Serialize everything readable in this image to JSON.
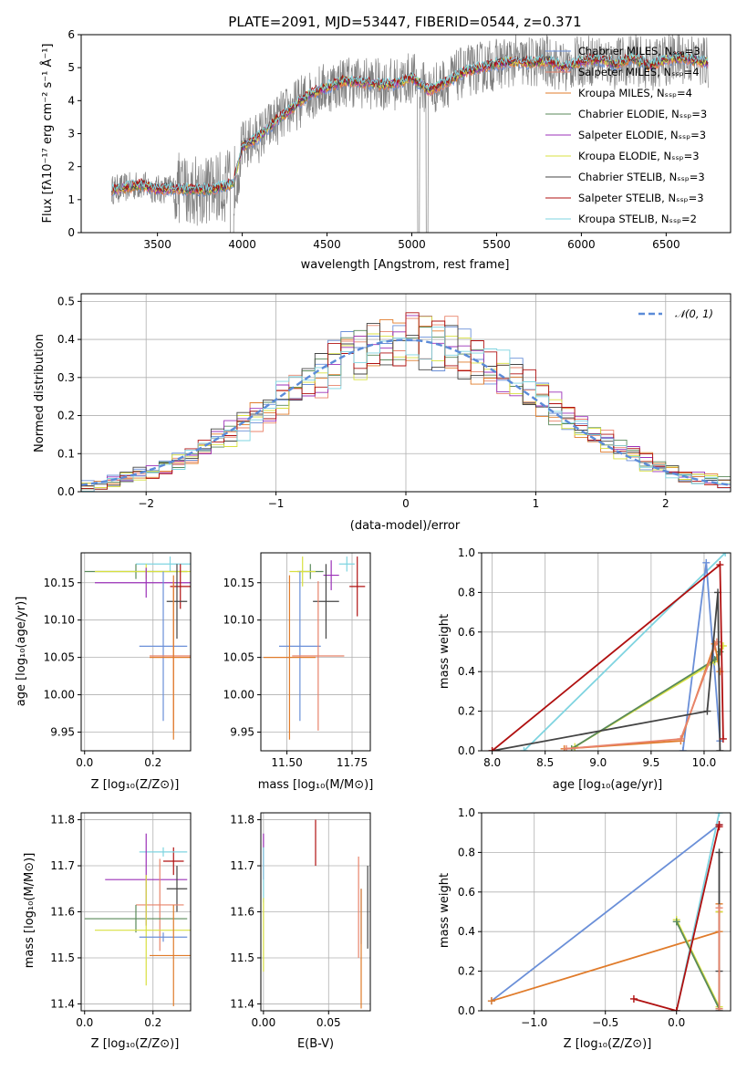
{
  "chart_data": [
    {
      "id": "spectrum",
      "type": "line",
      "title": "PLATE=2091, MJD=53447, FIBERID=0544, z=0.371",
      "xlabel": "wavelength [Angstrom, rest frame]",
      "ylabel": "Flux [fλ10⁻¹⁷ erg cm⁻² s⁻¹ Å⁻¹]",
      "xlim": [
        3050,
        6880
      ],
      "ylim": [
        0,
        6
      ],
      "xticks": [
        3500,
        4000,
        4500,
        5000,
        5500,
        6000,
        6500
      ],
      "yticks": [
        0,
        1,
        2,
        3,
        4,
        5,
        6
      ],
      "grid": false,
      "legend_position": "top-right",
      "legend": [
        {
          "label": "Chabrier MILES, Nₛₛₚ=3",
          "color": "#6a8fd8"
        },
        {
          "label": "Salpeter MILES, Nₛₛₚ=4",
          "color": "#e8836b"
        },
        {
          "label": "Kroupa MILES, Nₛₛₚ=4",
          "color": "#e07b2a"
        },
        {
          "label": "Chabrier ELODIE, Nₛₛₚ=3",
          "color": "#5a8a5a"
        },
        {
          "label": "Salpeter ELODIE, Nₛₛₚ=3",
          "color": "#9b30b8"
        },
        {
          "label": "Kroupa ELODIE, Nₛₛₚ=3",
          "color": "#d8e040"
        },
        {
          "label": "Chabrier STELIB, Nₛₛₚ=3",
          "color": "#444444"
        },
        {
          "label": "Salpeter STELIB, Nₛₛₚ=3",
          "color": "#b01010"
        },
        {
          "label": "Kroupa STELIB, Nₛₛₚ=2",
          "color": "#7fd4e0"
        }
      ],
      "model_curve": {
        "x": [
          3230,
          3300,
          3400,
          3500,
          3600,
          3700,
          3800,
          3900,
          3950,
          4000,
          4100,
          4200,
          4300,
          4400,
          4500,
          4600,
          4700,
          4800,
          4900,
          5000,
          5100,
          5200,
          5300,
          5400,
          5500,
          5600,
          5700,
          5800,
          5900,
          6000,
          6100,
          6200,
          6300,
          6400,
          6500,
          6600,
          6700,
          6750
        ],
        "y": [
          1.3,
          1.35,
          1.45,
          1.3,
          1.35,
          1.3,
          1.3,
          1.4,
          1.5,
          2.6,
          2.9,
          3.4,
          3.8,
          4.2,
          4.4,
          4.6,
          4.55,
          4.5,
          4.5,
          4.7,
          4.3,
          4.55,
          4.85,
          5.0,
          5.1,
          5.2,
          5.15,
          5.2,
          5.0,
          5.2,
          5.25,
          5.1,
          5.3,
          5.05,
          5.25,
          5.3,
          5.2,
          5.15
        ]
      }
    },
    {
      "id": "residuals",
      "type": "line",
      "xlabel": "(data-model)/error",
      "ylabel": "Normed distribution",
      "xlim": [
        -2.5,
        2.5
      ],
      "ylim": [
        0,
        0.52
      ],
      "xticks": [
        -2,
        -1,
        0,
        1,
        2
      ],
      "yticks": [
        0.0,
        0.1,
        0.2,
        0.3,
        0.4,
        0.5
      ],
      "grid": true,
      "legend_position": "top-right",
      "legend": [
        {
          "label": "𝒩(0, 1)",
          "color": "#5b8bd8",
          "style": "dashed"
        }
      ],
      "gaussian": {
        "mu": 0,
        "sigma": 1
      }
    },
    {
      "id": "age-vs-z",
      "type": "scatter",
      "xlabel": "Z [log₁₀(Z/Z⊙)]",
      "ylabel": "age  [log₁₀(age/yr)]",
      "xlim": [
        -0.01,
        0.31
      ],
      "ylim": [
        9.925,
        10.19
      ],
      "xticks": [
        0.0,
        0.2
      ],
      "yticks": [
        9.95,
        10.0,
        10.05,
        10.1,
        10.15
      ],
      "grid": true,
      "points": [
        {
          "x": 0.25,
          "y": 10.175,
          "xerr": 0.1,
          "yerr": 0.01,
          "color": "#7fd4e0"
        },
        {
          "x": 0.15,
          "y": 10.165,
          "xerr": 0.15,
          "yerr": 0.01,
          "color": "#5a8a5a"
        },
        {
          "x": 0.18,
          "y": 10.165,
          "xerr": 0.15,
          "yerr": 0.01,
          "color": "#d8e040"
        },
        {
          "x": 0.18,
          "y": 10.15,
          "xerr": 0.15,
          "yerr": 0.02,
          "color": "#9b30b8"
        },
        {
          "x": 0.28,
          "y": 10.145,
          "xerr": 0.03,
          "yerr": 0.03,
          "color": "#b01010"
        },
        {
          "x": 0.27,
          "y": 10.125,
          "xerr": 0.03,
          "yerr": 0.05,
          "color": "#444444"
        },
        {
          "x": 0.23,
          "y": 10.065,
          "xerr": 0.07,
          "yerr": 0.1,
          "color": "#6a8fd8"
        },
        {
          "x": 0.26,
          "y": 10.052,
          "xerr": 0.07,
          "yerr": 0.1,
          "color": "#e8836b"
        },
        {
          "x": 0.26,
          "y": 10.05,
          "xerr": 0.07,
          "yerr": 0.11,
          "color": "#e07b2a"
        }
      ]
    },
    {
      "id": "age-vs-mass",
      "type": "scatter",
      "xlabel": "mass [log₁₀(M/M⊙)]",
      "xlim": [
        11.4,
        11.82
      ],
      "ylim": [
        9.925,
        10.19
      ],
      "xticks": [
        11.5,
        11.75
      ],
      "yticks": [
        9.95,
        10.0,
        10.05,
        10.1,
        10.15
      ],
      "grid": true,
      "points": [
        {
          "x": 11.73,
          "y": 10.175,
          "xerr": 0.03,
          "yerr": 0.01,
          "color": "#7fd4e0"
        },
        {
          "x": 11.59,
          "y": 10.165,
          "xerr": 0.05,
          "yerr": 0.01,
          "color": "#5a8a5a"
        },
        {
          "x": 11.56,
          "y": 10.165,
          "xerr": 0.05,
          "yerr": 0.02,
          "color": "#d8e040"
        },
        {
          "x": 11.67,
          "y": 10.16,
          "xerr": 0.03,
          "yerr": 0.02,
          "color": "#9b30b8"
        },
        {
          "x": 11.77,
          "y": 10.145,
          "xerr": 0.03,
          "yerr": 0.04,
          "color": "#b01010"
        },
        {
          "x": 11.65,
          "y": 10.125,
          "xerr": 0.05,
          "yerr": 0.05,
          "color": "#444444"
        },
        {
          "x": 11.55,
          "y": 10.065,
          "xerr": 0.08,
          "yerr": 0.1,
          "color": "#6a8fd8"
        },
        {
          "x": 11.62,
          "y": 10.052,
          "xerr": 0.1,
          "yerr": 0.1,
          "color": "#e8836b"
        },
        {
          "x": 11.51,
          "y": 10.05,
          "xerr": 0.1,
          "yerr": 0.11,
          "color": "#e07b2a"
        }
      ]
    },
    {
      "id": "mass-weight-vs-age",
      "type": "line",
      "xlabel": "age  [log₁₀(age/yr)]",
      "ylabel": "mass weight",
      "xlim": [
        7.9,
        10.25
      ],
      "ylim": [
        0,
        1.0
      ],
      "xticks": [
        8.0,
        8.5,
        9.0,
        9.5,
        10.0
      ],
      "yticks": [
        0.0,
        0.2,
        0.4,
        0.6,
        0.8,
        1.0
      ],
      "grid": true,
      "series": [
        {
          "color": "#7fd4e0",
          "x": [
            8.3,
            10.2
          ],
          "y": [
            0.0,
            1.0
          ]
        },
        {
          "color": "#6a8fd8",
          "x": [
            9.8,
            10.02,
            10.15
          ],
          "y": [
            0.0,
            0.95,
            0.05
          ]
        },
        {
          "color": "#d8e040",
          "x": [
            8.78,
            10.1,
            10.18
          ],
          "y": [
            0.02,
            0.45,
            0.53
          ]
        },
        {
          "color": "#5a8a5a",
          "x": [
            8.75,
            10.1,
            10.15
          ],
          "y": [
            0.01,
            0.46,
            0.5
          ]
        },
        {
          "color": "#e07b2a",
          "x": [
            8.68,
            9.78,
            10.1,
            10.15
          ],
          "y": [
            0.01,
            0.05,
            0.54,
            0.4
          ]
        },
        {
          "color": "#e8836b",
          "x": [
            8.7,
            9.78,
            10.12
          ],
          "y": [
            0.01,
            0.06,
            0.55
          ]
        },
        {
          "color": "#444444",
          "x": [
            8.0,
            10.03,
            10.13,
            10.15
          ],
          "y": [
            0.0,
            0.2,
            0.8,
            0.0
          ]
        },
        {
          "color": "#b01010",
          "x": [
            8.0,
            10.15,
            10.18
          ],
          "y": [
            0.0,
            0.94,
            0.06
          ]
        }
      ]
    },
    {
      "id": "mass-vs-z",
      "type": "scatter",
      "xlabel": "Z [log₁₀(Z/Z⊙)]",
      "ylabel": "mass [log₁₀(M/M⊙)]",
      "xlim": [
        -0.01,
        0.31
      ],
      "ylim": [
        11.385,
        11.815
      ],
      "xticks": [
        0.0,
        0.2
      ],
      "yticks": [
        11.4,
        11.5,
        11.6,
        11.7,
        11.8
      ],
      "grid": true,
      "points": [
        {
          "x": 0.26,
          "y": 11.71,
          "xerr": 0.03,
          "yerr": 0.03,
          "color": "#b01010"
        },
        {
          "x": 0.23,
          "y": 11.73,
          "xerr": 0.07,
          "yerr": 0.01,
          "color": "#7fd4e0"
        },
        {
          "x": 0.18,
          "y": 11.67,
          "xerr": 0.12,
          "yerr": 0.1,
          "color": "#9b30b8"
        },
        {
          "x": 0.27,
          "y": 11.65,
          "xerr": 0.03,
          "yerr": 0.05,
          "color": "#444444"
        },
        {
          "x": 0.22,
          "y": 11.615,
          "xerr": 0.07,
          "yerr": 0.1,
          "color": "#e8836b"
        },
        {
          "x": 0.15,
          "y": 11.585,
          "xerr": 0.15,
          "yerr": 0.03,
          "color": "#5a8a5a"
        },
        {
          "x": 0.18,
          "y": 11.56,
          "xerr": 0.15,
          "yerr": 0.12,
          "color": "#d8e040"
        },
        {
          "x": 0.23,
          "y": 11.545,
          "xerr": 0.07,
          "yerr": 0.01,
          "color": "#6a8fd8"
        },
        {
          "x": 0.26,
          "y": 11.505,
          "xerr": 0.07,
          "yerr": 0.11,
          "color": "#e07b2a"
        }
      ]
    },
    {
      "id": "mass-vs-ebv",
      "type": "scatter",
      "xlabel": "E(B-V)",
      "xlim": [
        -0.002,
        0.082
      ],
      "ylim": [
        11.385,
        11.815
      ],
      "xticks": [
        0.0,
        0.05
      ],
      "yticks": [
        11.4,
        11.5,
        11.6,
        11.7,
        11.8
      ],
      "grid": true,
      "points": [
        {
          "x": 0.04,
          "y": 11.75,
          "xerr": 0,
          "yerr": 0.05,
          "color": "#b01010"
        },
        {
          "x": 0.0,
          "y": 11.72,
          "xerr": 0,
          "yerr": 0.05,
          "color": "#9b30b8"
        },
        {
          "x": 0.0,
          "y": 11.68,
          "xerr": 0,
          "yerr": 0.06,
          "color": "#7fd4e0"
        },
        {
          "x": 0.0,
          "y": 11.55,
          "xerr": 0,
          "yerr": 0.08,
          "color": "#d8e040"
        },
        {
          "x": 0.073,
          "y": 11.61,
          "xerr": 0,
          "yerr": 0.11,
          "color": "#e8836b"
        },
        {
          "x": 0.075,
          "y": 11.59,
          "xerr": 0,
          "yerr": 0.06,
          "color": "#6a8fd8"
        },
        {
          "x": 0.08,
          "y": 11.61,
          "xerr": 0,
          "yerr": 0.09,
          "color": "#444444"
        },
        {
          "x": 0.075,
          "y": 11.52,
          "xerr": 0,
          "yerr": 0.13,
          "color": "#e07b2a"
        }
      ]
    },
    {
      "id": "mass-weight-vs-z",
      "type": "line",
      "xlabel": "Z [log₁₀(Z/Z⊙)]",
      "ylabel": "mass weight",
      "xlim": [
        -1.37,
        0.38
      ],
      "ylim": [
        0,
        1.0
      ],
      "xticks": [
        -1.0,
        -0.5,
        0.0
      ],
      "yticks": [
        0.0,
        0.2,
        0.4,
        0.6,
        0.8,
        1.0
      ],
      "grid": true,
      "series": [
        {
          "color": "#6a8fd8",
          "x": [
            -1.3,
            0.3
          ],
          "y": [
            0.05,
            0.94
          ]
        },
        {
          "color": "#e07b2a",
          "x": [
            -1.3,
            0.3,
            0.3,
            0.3
          ],
          "y": [
            0.05,
            0.4,
            0.54,
            0.5
          ]
        },
        {
          "color": "#7fd4e0",
          "x": [
            0.0,
            0.3
          ],
          "y": [
            0.0,
            1.0
          ]
        },
        {
          "color": "#d8e040",
          "x": [
            0.0,
            0.3,
            0.3
          ],
          "y": [
            0.46,
            0.02,
            0.5
          ]
        },
        {
          "color": "#5a8a5a",
          "x": [
            0.0,
            0.3
          ],
          "y": [
            0.45,
            0.01
          ]
        },
        {
          "color": "#b01010",
          "x": [
            -0.3,
            0.0,
            0.3,
            0.3
          ],
          "y": [
            0.06,
            0.0,
            0.94,
            0.93
          ]
        },
        {
          "color": "#444444",
          "x": [
            0.3,
            0.3,
            0.3
          ],
          "y": [
            0.0,
            0.8,
            0.2
          ]
        },
        {
          "color": "#e8836b",
          "x": [
            0.3,
            0.3
          ],
          "y": [
            0.52,
            0.01
          ]
        }
      ]
    }
  ]
}
